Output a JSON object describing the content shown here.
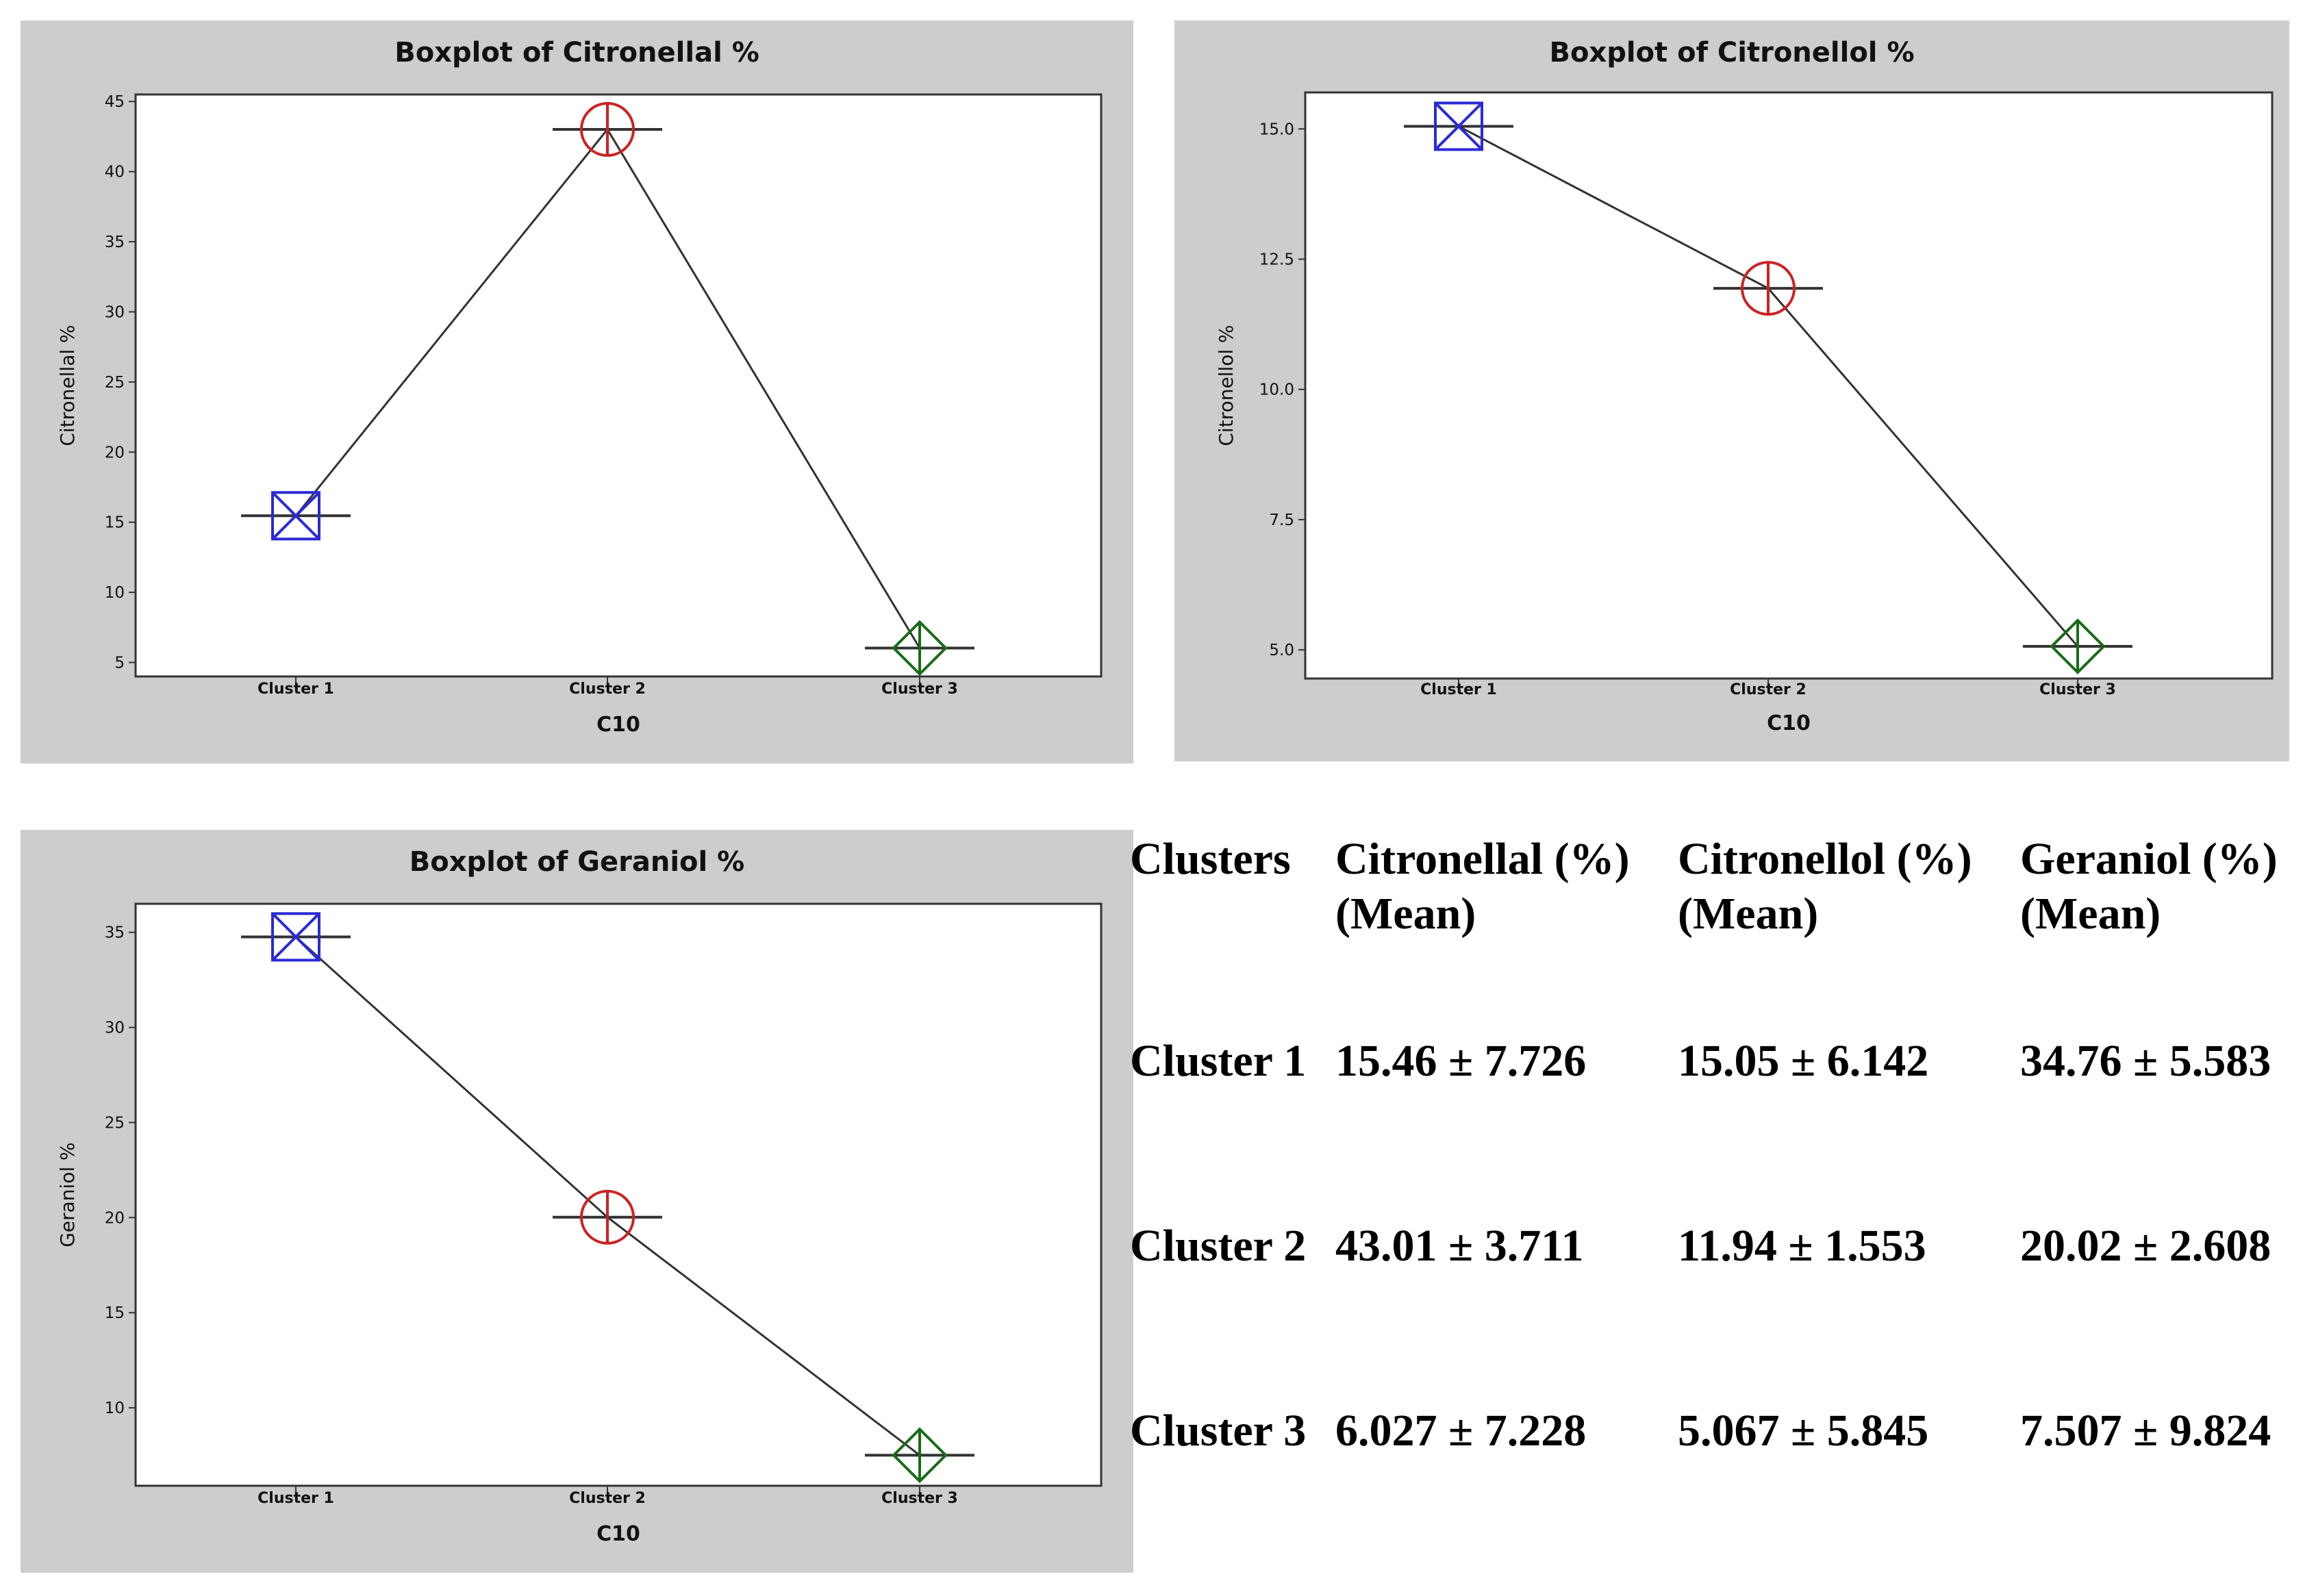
{
  "chart_data": [
    {
      "type": "boxplot",
      "title": "Boxplot of Citronellal %",
      "xlabel": "C10",
      "ylabel": "Citronellal %",
      "categories": [
        "Cluster 1",
        "Cluster 2",
        "Cluster 3"
      ],
      "values": [
        15.46,
        43.01,
        6.027
      ],
      "ylim": [
        4,
        45.5
      ],
      "yticks": [
        5,
        10,
        15,
        20,
        25,
        30,
        35,
        40,
        45
      ],
      "ytick_labels": [
        "5",
        "10",
        "15",
        "20",
        "25",
        "30",
        "35",
        "40",
        "45"
      ],
      "markers": [
        "square-x",
        "circle-plus",
        "diamond-plus"
      ],
      "marker_colors": [
        "#2a2ad6",
        "#cc2222",
        "#1a6b1a"
      ]
    },
    {
      "type": "boxplot",
      "title": "Boxplot of Citronellol %",
      "xlabel": "C10",
      "ylabel": "Citronellol %",
      "categories": [
        "Cluster 1",
        "Cluster 2",
        "Cluster 3"
      ],
      "values": [
        15.05,
        11.94,
        5.067
      ],
      "ylim": [
        4.45,
        15.7
      ],
      "yticks": [
        5.0,
        7.5,
        10.0,
        12.5,
        15.0
      ],
      "ytick_labels": [
        "5.0",
        "7.5",
        "10.0",
        "12.5",
        "15.0"
      ],
      "markers": [
        "square-x",
        "circle-plus",
        "diamond-plus"
      ],
      "marker_colors": [
        "#2a2ad6",
        "#cc2222",
        "#1a6b1a"
      ]
    },
    {
      "type": "boxplot",
      "title": "Boxplot of Geraniol %",
      "xlabel": "C10",
      "ylabel": "Geraniol %",
      "categories": [
        "Cluster 1",
        "Cluster 2",
        "Cluster 3"
      ],
      "values": [
        34.76,
        20.02,
        7.507
      ],
      "ylim": [
        5.9,
        36.5
      ],
      "yticks": [
        10,
        15,
        20,
        25,
        30,
        35
      ],
      "ytick_labels": [
        "10",
        "15",
        "20",
        "25",
        "30",
        "35"
      ],
      "markers": [
        "square-x",
        "circle-plus",
        "diamond-plus"
      ],
      "marker_colors": [
        "#2a2ad6",
        "#cc2222",
        "#1a6b1a"
      ]
    }
  ],
  "summary_table": {
    "headers": [
      {
        "line1": "Clusters",
        "line2": ""
      },
      {
        "line1": "Citronellal (%)",
        "line2": "(Mean)"
      },
      {
        "line1": "Citronellol (%)",
        "line2": "(Mean)"
      },
      {
        "line1": "Geraniol (%)",
        "line2": "(Mean)"
      }
    ],
    "rows": [
      [
        "Cluster 1",
        "15.46 ± 7.726",
        "15.05 ± 6.142",
        "34.76 ± 5.583"
      ],
      [
        "Cluster 2",
        "43.01 ± 3.711",
        "11.94 ± 1.553",
        "20.02 ± 2.608"
      ],
      [
        "Cluster 3",
        "6.027 ± 7.228",
        "5.067 ± 5.845",
        "7.507 ± 9.824"
      ]
    ]
  }
}
